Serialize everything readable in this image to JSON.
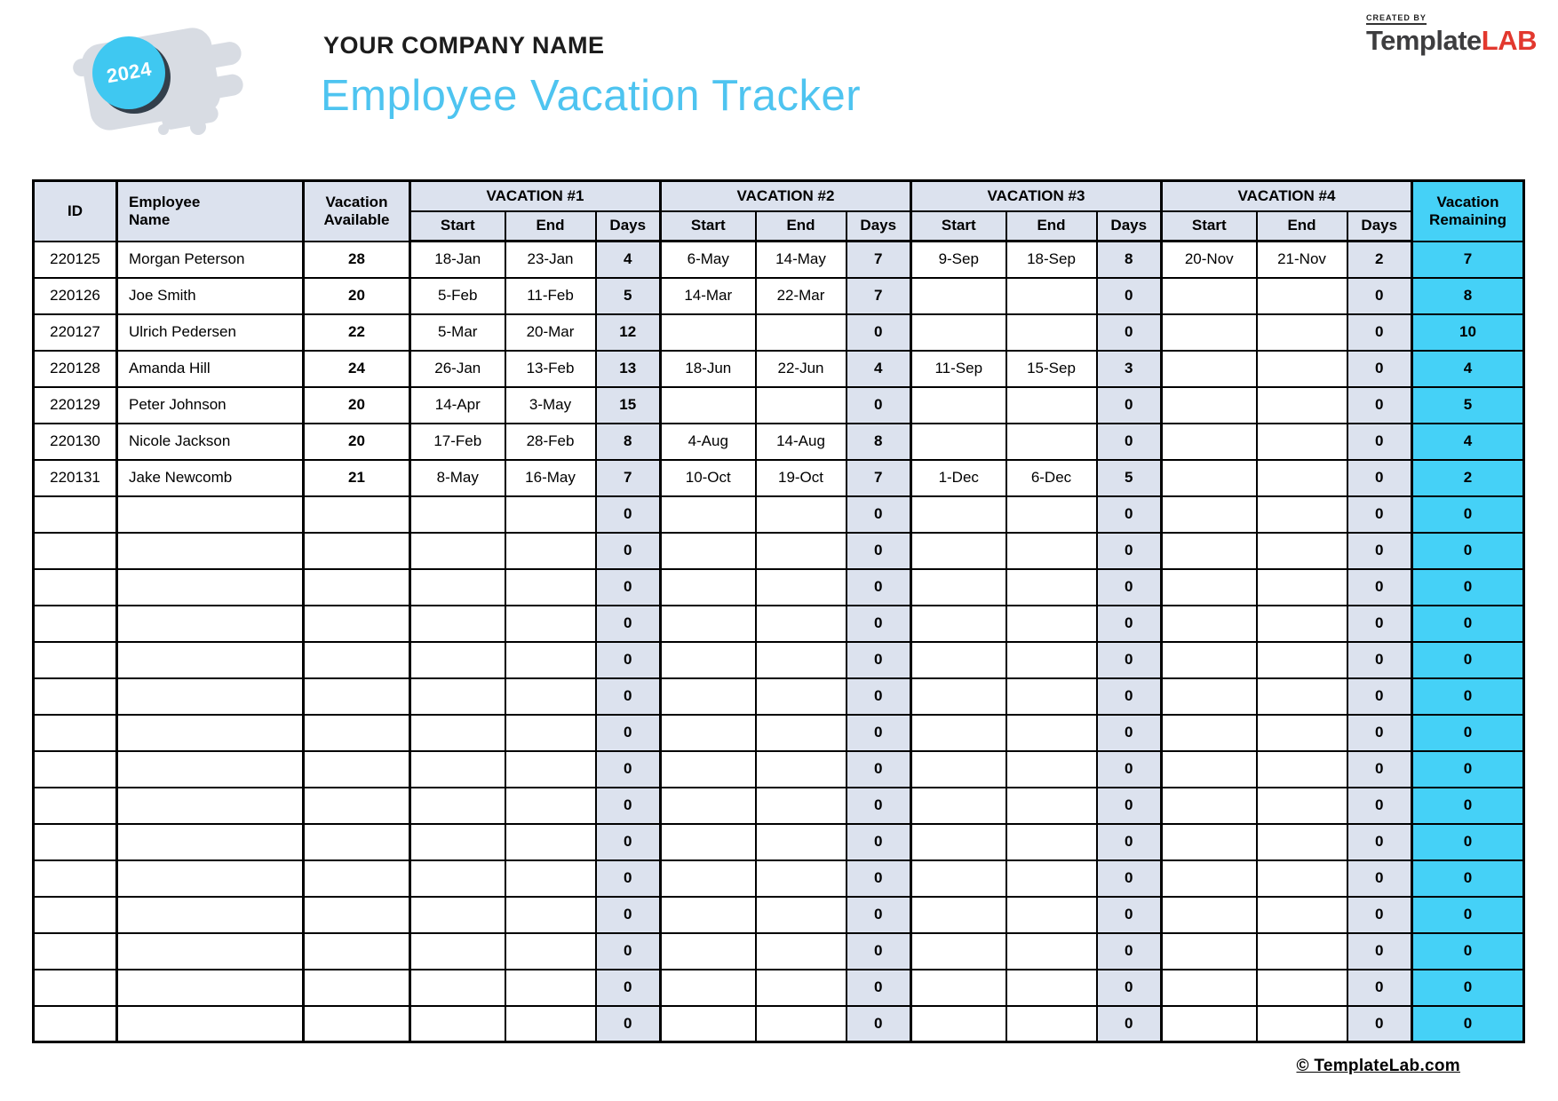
{
  "header": {
    "year": "2024",
    "company_name": "YOUR COMPANY NAME",
    "title": "Employee Vacation Tracker"
  },
  "logo": {
    "created_by": "CREATED BY",
    "brand_dark": "Template",
    "brand_red": "LAB"
  },
  "colors": {
    "accent_cyan": "#45d1f7",
    "header_fill": "#dce2ee",
    "title_blue": "#4ec4f0",
    "year_circle_cyan": "#3fc8f1",
    "logo_red": "#e2382e",
    "border_black": "#000000"
  },
  "table": {
    "headers": {
      "id": "ID",
      "employee_name": "Employee\nName",
      "vacation_available": "Vacation\nAvailable",
      "vacation_groups": [
        "VACATION #1",
        "VACATION #2",
        "VACATION #3",
        "VACATION #4"
      ],
      "sub": [
        "Start",
        "End",
        "Days"
      ],
      "vacation_remaining": "Vacation\nRemaining"
    },
    "rows": [
      {
        "id": "220125",
        "name": "Morgan Peterson",
        "available": "28",
        "vacations": [
          [
            "18-Jan",
            "23-Jan",
            "4"
          ],
          [
            "6-May",
            "14-May",
            "7"
          ],
          [
            "9-Sep",
            "18-Sep",
            "8"
          ],
          [
            "20-Nov",
            "21-Nov",
            "2"
          ]
        ],
        "remaining": "7"
      },
      {
        "id": "220126",
        "name": "Joe Smith",
        "available": "20",
        "vacations": [
          [
            "5-Feb",
            "11-Feb",
            "5"
          ],
          [
            "14-Mar",
            "22-Mar",
            "7"
          ],
          [
            "",
            "",
            "0"
          ],
          [
            "",
            "",
            "0"
          ]
        ],
        "remaining": "8"
      },
      {
        "id": "220127",
        "name": "Ulrich Pedersen",
        "available": "22",
        "vacations": [
          [
            "5-Mar",
            "20-Mar",
            "12"
          ],
          [
            "",
            "",
            "0"
          ],
          [
            "",
            "",
            "0"
          ],
          [
            "",
            "",
            "0"
          ]
        ],
        "remaining": "10"
      },
      {
        "id": "220128",
        "name": "Amanda Hill",
        "available": "24",
        "vacations": [
          [
            "26-Jan",
            "13-Feb",
            "13"
          ],
          [
            "18-Jun",
            "22-Jun",
            "4"
          ],
          [
            "11-Sep",
            "15-Sep",
            "3"
          ],
          [
            "",
            "",
            "0"
          ]
        ],
        "remaining": "4"
      },
      {
        "id": "220129",
        "name": "Peter Johnson",
        "available": "20",
        "vacations": [
          [
            "14-Apr",
            "3-May",
            "15"
          ],
          [
            "",
            "",
            "0"
          ],
          [
            "",
            "",
            "0"
          ],
          [
            "",
            "",
            "0"
          ]
        ],
        "remaining": "5"
      },
      {
        "id": "220130",
        "name": "Nicole Jackson",
        "available": "20",
        "vacations": [
          [
            "17-Feb",
            "28-Feb",
            "8"
          ],
          [
            "4-Aug",
            "14-Aug",
            "8"
          ],
          [
            "",
            "",
            "0"
          ],
          [
            "",
            "",
            "0"
          ]
        ],
        "remaining": "4"
      },
      {
        "id": "220131",
        "name": "Jake Newcomb",
        "available": "21",
        "vacations": [
          [
            "8-May",
            "16-May",
            "7"
          ],
          [
            "10-Oct",
            "19-Oct",
            "7"
          ],
          [
            "1-Dec",
            "6-Dec",
            "5"
          ],
          [
            "",
            "",
            "0"
          ]
        ],
        "remaining": "2"
      }
    ],
    "empty_rows": {
      "count": 15,
      "days": "0",
      "remaining": "0"
    }
  },
  "footer": {
    "text": "© TemplateLab.com"
  }
}
